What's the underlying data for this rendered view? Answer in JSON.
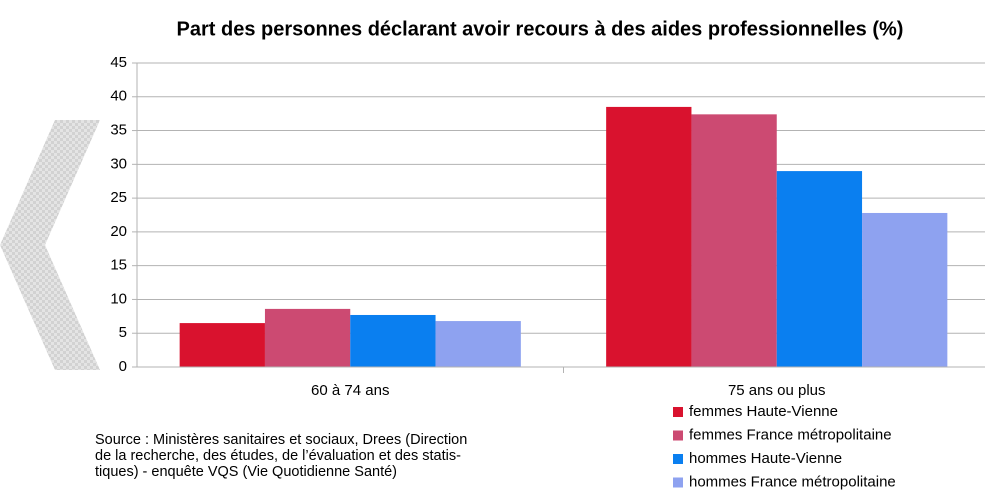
{
  "chart_data": {
    "type": "bar",
    "title": "Part des personnes déclarant avoir recours à des aides professionnelles (%)",
    "categories": [
      "60 à 74 ans",
      "75 ans ou plus"
    ],
    "series": [
      {
        "name": "femmes Haute-Vienne",
        "color": "#d9122e",
        "values": [
          6.5,
          38.5
        ]
      },
      {
        "name": "femmes France métropolitaine",
        "color": "#cc4a72",
        "values": [
          8.6,
          37.4
        ]
      },
      {
        "name": "hommes Haute-Vienne",
        "color": "#0a7ff0",
        "values": [
          7.7,
          29.0
        ]
      },
      {
        "name": "hommes France métropolitaine",
        "color": "#8ea2f0",
        "values": [
          6.8,
          22.8
        ]
      }
    ],
    "ylim": [
      0,
      45
    ],
    "yticks": [
      0,
      5,
      10,
      15,
      20,
      25,
      30,
      35,
      40,
      45
    ],
    "grid": true,
    "legend": "bottom-right",
    "source": "Source : Ministères sanitaires et sociaux, Drees (Direction de la recherche, des études, de l’évaluation et des statis-tiques) - enquête VQS (Vie Quotidienne Santé)"
  }
}
